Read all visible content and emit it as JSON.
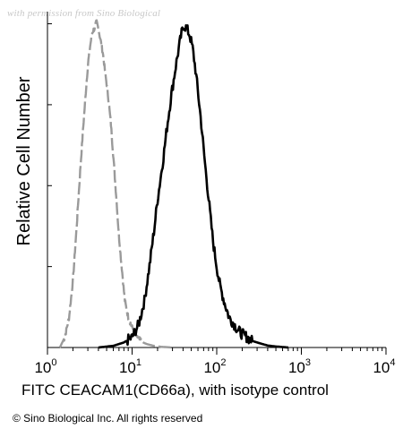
{
  "watermark": "with permission from Sino Biological",
  "copyright": "© Sino Biological Inc. All rights reserved",
  "chart_data": {
    "type": "line",
    "xscale": "log",
    "xlim": [
      1,
      10000
    ],
    "ylim": [
      0,
      100
    ],
    "xlabel": "FITC CEACAM1(CD66a),  with isotype control",
    "ylabel": "Relative Cell Number",
    "x_ticks": [
      {
        "base": "10",
        "exp": "0",
        "value": 1
      },
      {
        "base": "10",
        "exp": "1",
        "value": 10
      },
      {
        "base": "10",
        "exp": "2",
        "value": 100
      },
      {
        "base": "10",
        "exp": "3",
        "value": 1000
      },
      {
        "base": "10",
        "exp": "4",
        "value": 10000
      }
    ],
    "grid": false,
    "legend": "none",
    "series": [
      {
        "style": "dashed",
        "color": "#9a9a9a",
        "x": [
          1.4,
          1.6,
          1.8,
          2.0,
          2.2,
          2.4,
          2.6,
          2.8,
          3.0,
          3.2,
          3.4,
          3.6,
          3.8,
          4.0,
          4.2,
          4.5,
          4.8,
          5.2,
          5.6,
          6.0,
          6.5,
          7.0,
          7.6,
          8.2,
          9.0,
          10,
          11,
          12,
          13.5,
          15,
          18,
          22,
          30
        ],
        "y": [
          0,
          3,
          9,
          20,
          35,
          50,
          63,
          74,
          84,
          90,
          94,
          95,
          97,
          95,
          92,
          88,
          82,
          75,
          67,
          57,
          45,
          33,
          23,
          14,
          9,
          6,
          4,
          2.5,
          1.5,
          1,
          0.5,
          0.2,
          0
        ]
      },
      {
        "style": "solid",
        "color": "#000000",
        "x": [
          4,
          6,
          8,
          10,
          12,
          14,
          16,
          18,
          20,
          23,
          26,
          29,
          32,
          35,
          38,
          41,
          44,
          48,
          52,
          56,
          60,
          65,
          70,
          76,
          82,
          90,
          100,
          110,
          125,
          140,
          160,
          180,
          200,
          230,
          260,
          300,
          350,
          400,
          500,
          700
        ],
        "y": [
          0,
          0.5,
          1.5,
          3,
          7,
          14,
          24,
          34,
          44,
          55,
          66,
          75,
          82,
          88,
          93,
          96,
          95,
          93,
          89,
          83,
          76,
          68,
          59,
          50,
          42,
          32,
          24,
          18,
          13,
          9,
          7,
          5,
          4,
          3,
          2,
          1.5,
          1,
          0.6,
          0.3,
          0
        ]
      }
    ]
  }
}
